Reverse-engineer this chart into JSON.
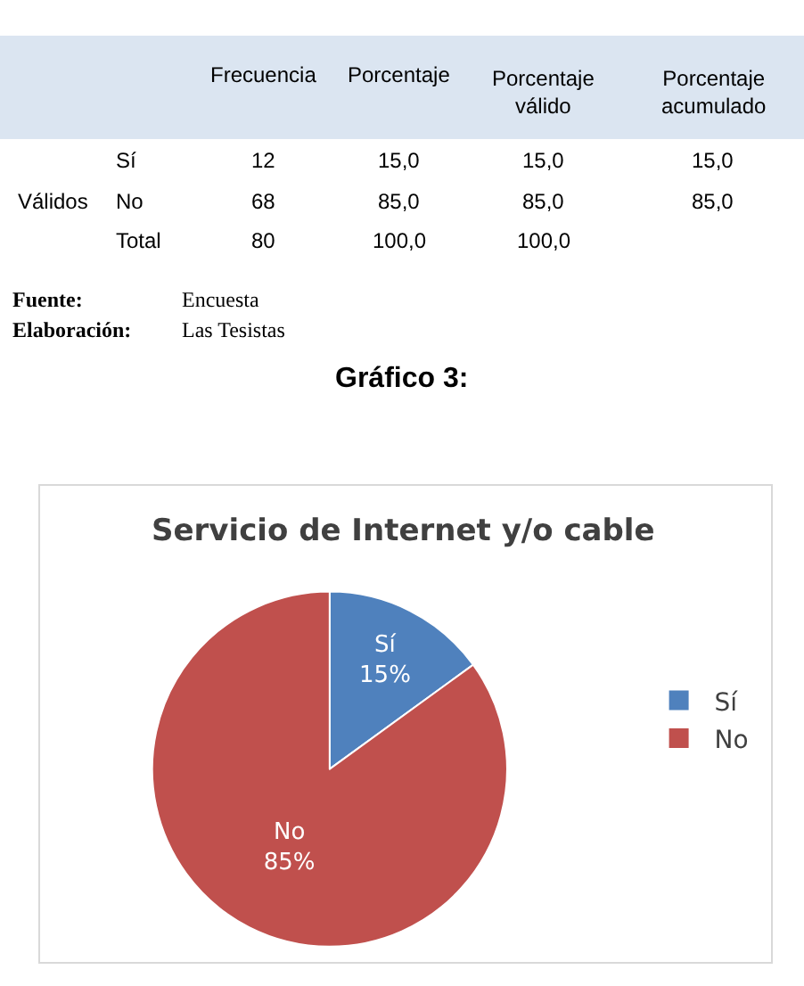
{
  "chart_data": {
    "type": "pie",
    "title": "Servicio de Internet y/o cable",
    "categories": [
      "Sí",
      "No"
    ],
    "values": [
      15,
      85
    ],
    "colors": [
      "#4f81bd",
      "#c0504d"
    ],
    "value_labels": [
      "15%",
      "85%"
    ],
    "legend": "right",
    "annotations": [
      "Frecuencia",
      "Porcentaje",
      "Porcentaje válido",
      "Porcentaje acumulado",
      "Válidos",
      "Sí",
      "12",
      "15,0",
      "15,0",
      "15,0",
      "No",
      "68",
      "85,0",
      "85,0",
      "85,0",
      "Total",
      "80",
      "100,0",
      "100,0",
      "Fuente:",
      "Encuesta",
      "Elaboración:",
      "Las Tesistas",
      "Gráfico 3:"
    ]
  }
}
